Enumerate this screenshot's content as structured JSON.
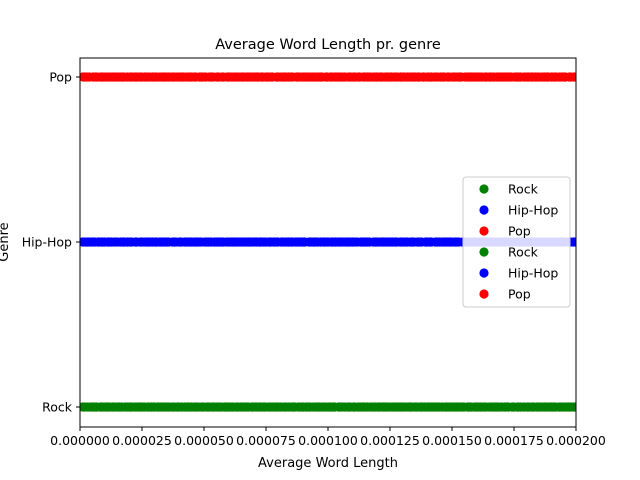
{
  "chart_data": {
    "type": "scatter",
    "title": "Average Word Length pr. genre",
    "xlabel": "Average Word Length",
    "ylabel": "Genre",
    "xlim": [
      0,
      0.0002
    ],
    "x_ticks": [
      "0.000000",
      "0.000025",
      "0.000050",
      "0.000075",
      "0.000100",
      "0.000125",
      "0.000150",
      "0.000175",
      "0.000200"
    ],
    "x_tick_values": [
      0,
      2.5e-05,
      5e-05,
      7.5e-05,
      0.0001,
      0.000125,
      0.00015,
      0.000175,
      0.0002
    ],
    "categories": [
      "Rock",
      "Hip-Hop",
      "Pop"
    ],
    "grid": false,
    "legend_position": "center-right",
    "series": [
      {
        "name": "Rock",
        "category": "Rock",
        "color": "#008000",
        "x_range": [
          1e-06,
          0.0002
        ],
        "point_count": 200
      },
      {
        "name": "Hip-Hop",
        "category": "Hip-Hop",
        "color": "#0000ff",
        "x_range": [
          1e-06,
          0.0002
        ],
        "point_count": 200
      },
      {
        "name": "Pop",
        "category": "Pop",
        "color": "#ff0000",
        "x_range": [
          1e-06,
          0.0002
        ],
        "point_count": 200
      },
      {
        "name": "Rock",
        "category": "Rock",
        "color": "#008000",
        "x_range": [
          1e-06,
          0.0002
        ],
        "point_count": 0
      },
      {
        "name": "Hip-Hop",
        "category": "Hip-Hop",
        "color": "#0000ff",
        "x_range": [
          1e-06,
          0.0002
        ],
        "point_count": 0
      },
      {
        "name": "Pop",
        "category": "Pop",
        "color": "#ff0000",
        "x_range": [
          1e-06,
          0.0002
        ],
        "point_count": 0
      }
    ]
  }
}
